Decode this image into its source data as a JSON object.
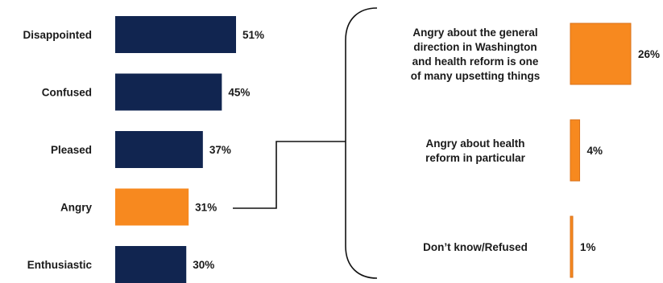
{
  "chart_data": [
    {
      "type": "bar",
      "orientation": "horizontal",
      "categories": [
        "Disappointed",
        "Confused",
        "Pleased",
        "Angry",
        "Enthusiastic"
      ],
      "values": [
        51,
        45,
        37,
        31,
        30
      ],
      "value_labels": [
        "51%",
        "45%",
        "37%",
        "31%",
        "30%"
      ],
      "highlight": "Angry",
      "colors": {
        "default": "#112550",
        "highlight": "#F7891F"
      }
    },
    {
      "type": "bar",
      "orientation": "horizontal",
      "breakdown_of": "Angry",
      "categories": [
        [
          "Angry about the general",
          "direction in Washington",
          "and health reform is one",
          "of many upsetting things"
        ],
        [
          "Angry about health",
          "reform in particular"
        ],
        [
          "Don’t know/Refused"
        ]
      ],
      "values": [
        26,
        4,
        1
      ],
      "value_labels": [
        "26%",
        "4%",
        "1%"
      ],
      "colors": {
        "default": "#F7891F",
        "border": "#D9711A"
      }
    }
  ]
}
